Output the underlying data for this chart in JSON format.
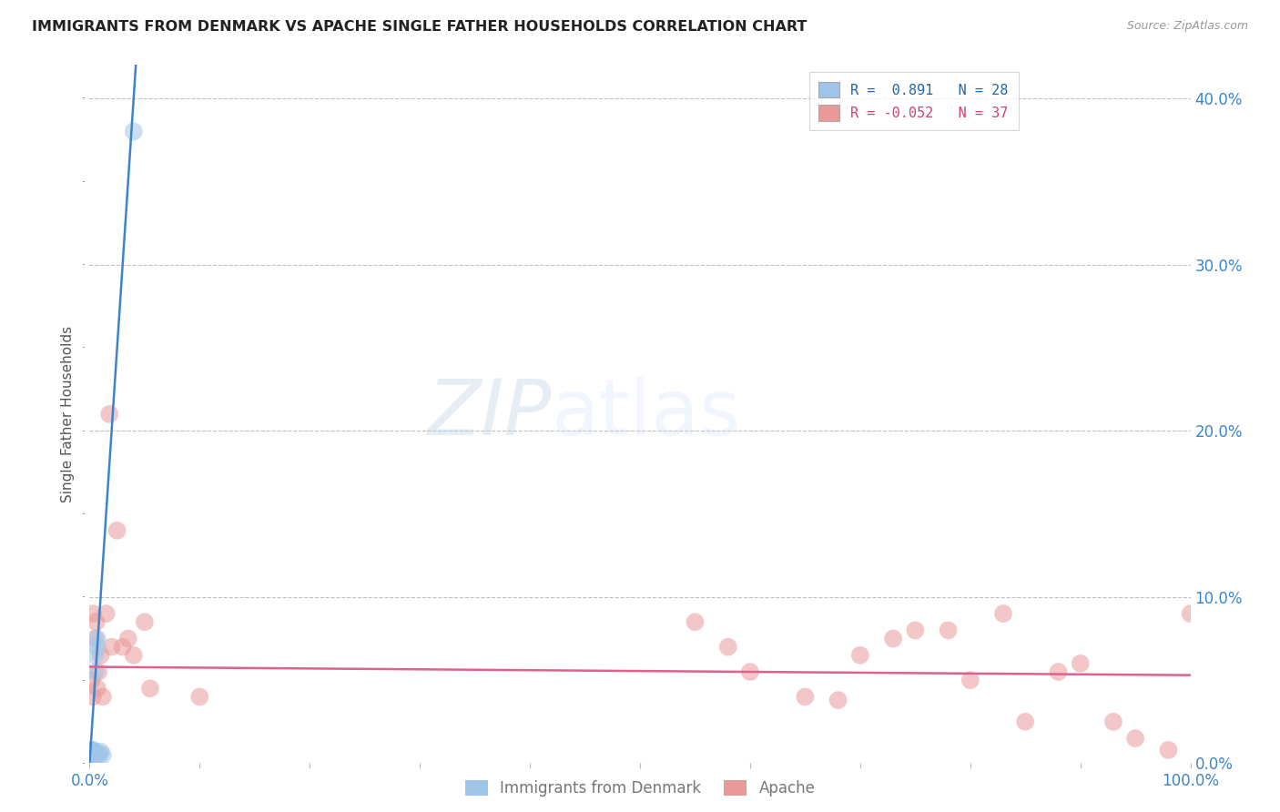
{
  "title": "IMMIGRANTS FROM DENMARK VS APACHE SINGLE FATHER HOUSEHOLDS CORRELATION CHART",
  "source": "Source: ZipAtlas.com",
  "ylabel": "Single Father Households",
  "xlim": [
    0,
    1.0
  ],
  "ylim": [
    0,
    0.42
  ],
  "ytick_labels_right": [
    "0.0%",
    "10.0%",
    "20.0%",
    "30.0%",
    "40.0%"
  ],
  "yticks_right": [
    0.0,
    0.1,
    0.2,
    0.3,
    0.4
  ],
  "watermark_zip": "ZIP",
  "watermark_atlas": "atlas",
  "blue_color": "#9fc5e8",
  "pink_color": "#ea9999",
  "blue_line_color": "#3d85c8",
  "pink_line_color": "#e06090",
  "background_color": "#ffffff",
  "grid_color": "#c0c0c0",
  "blue_scatter_x": [
    0.001,
    0.001,
    0.001,
    0.001,
    0.001,
    0.002,
    0.002,
    0.002,
    0.002,
    0.002,
    0.003,
    0.003,
    0.003,
    0.003,
    0.004,
    0.004,
    0.004,
    0.005,
    0.005,
    0.006,
    0.006,
    0.007,
    0.007,
    0.008,
    0.009,
    0.01,
    0.012,
    0.04
  ],
  "blue_scatter_y": [
    0.005,
    0.005,
    0.006,
    0.007,
    0.008,
    0.004,
    0.005,
    0.006,
    0.007,
    0.008,
    0.005,
    0.006,
    0.007,
    0.008,
    0.005,
    0.006,
    0.007,
    0.055,
    0.065,
    0.005,
    0.006,
    0.07,
    0.075,
    0.006,
    0.005,
    0.007,
    0.005,
    0.38
  ],
  "pink_scatter_x": [
    0.002,
    0.003,
    0.003,
    0.005,
    0.006,
    0.007,
    0.008,
    0.01,
    0.012,
    0.015,
    0.018,
    0.02,
    0.025,
    0.03,
    0.035,
    0.04,
    0.05,
    0.055,
    0.1,
    0.55,
    0.58,
    0.6,
    0.65,
    0.68,
    0.7,
    0.73,
    0.75,
    0.78,
    0.8,
    0.83,
    0.85,
    0.88,
    0.9,
    0.93,
    0.95,
    0.98,
    1.0
  ],
  "pink_scatter_y": [
    0.05,
    0.04,
    0.09,
    0.075,
    0.085,
    0.045,
    0.055,
    0.065,
    0.04,
    0.09,
    0.21,
    0.07,
    0.14,
    0.07,
    0.075,
    0.065,
    0.085,
    0.045,
    0.04,
    0.085,
    0.07,
    0.055,
    0.04,
    0.038,
    0.065,
    0.075,
    0.08,
    0.08,
    0.05,
    0.09,
    0.025,
    0.055,
    0.06,
    0.025,
    0.015,
    0.008,
    0.09
  ],
  "blue_trend_x": [
    0.0,
    0.042
  ],
  "blue_trend_y": [
    0.0,
    0.42
  ],
  "pink_trend_x": [
    0.0,
    1.0
  ],
  "pink_trend_y": [
    0.058,
    0.053
  ],
  "legend_label1": "Immigrants from Denmark",
  "legend_label2": "Apache"
}
